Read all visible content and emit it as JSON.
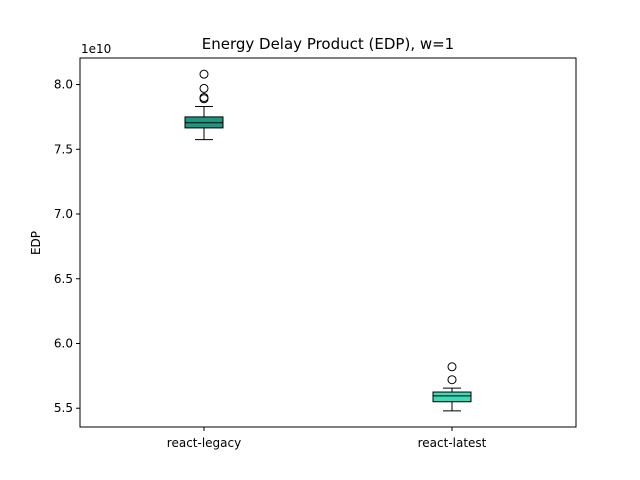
{
  "chart_data": {
    "type": "box",
    "title": "Energy Delay Product (EDP), w=1",
    "xlabel": "",
    "ylabel": "EDP",
    "scale_label": "1e10",
    "scale": 10000000000,
    "ylim": [
      53550000000,
      82050000000
    ],
    "yticks": [
      55000000000,
      60000000000,
      65000000000,
      70000000000,
      75000000000,
      80000000000
    ],
    "ytick_labels": [
      "5.5",
      "6.0",
      "6.5",
      "7.0",
      "7.5",
      "8.0"
    ],
    "grid": false,
    "categories": [
      "react-legacy",
      "react-latest"
    ],
    "boxes": [
      {
        "category": "react-legacy",
        "color": "#1f9680",
        "whisker_low": 75750000000,
        "q1": 76650000000,
        "median": 77050000000,
        "q3": 77500000000,
        "whisker_high": 78300000000,
        "outliers": [
          78900000000,
          79000000000,
          79700000000,
          80800000000
        ]
      },
      {
        "category": "react-latest",
        "color": "#3ed9b5",
        "whisker_low": 54800000000,
        "q1": 55500000000,
        "median": 55950000000,
        "q3": 56250000000,
        "whisker_high": 56550000000,
        "outliers": [
          57200000000,
          58200000000
        ]
      }
    ]
  }
}
